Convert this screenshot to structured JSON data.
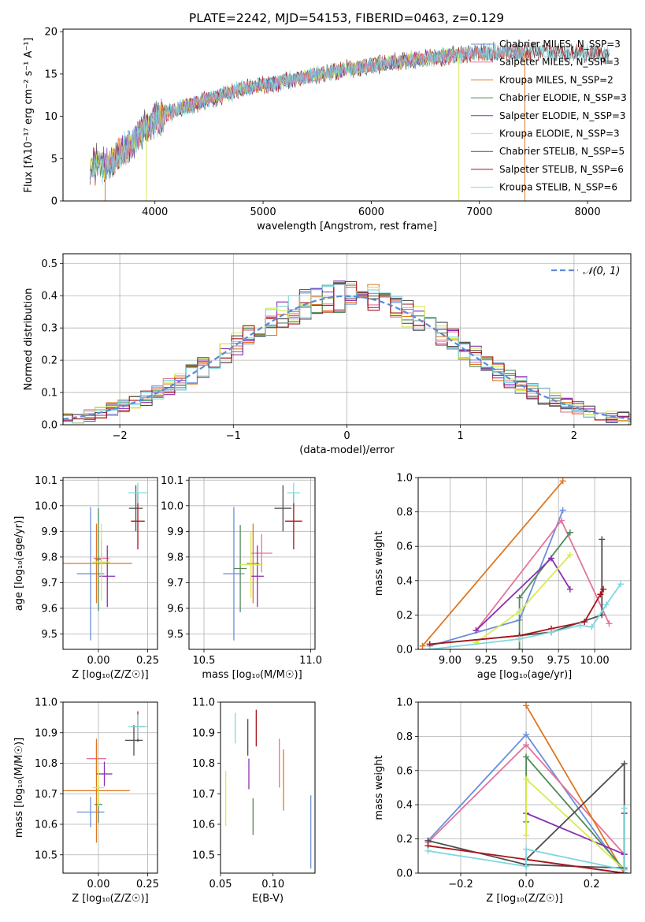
{
  "colors": {
    "Chabrier MILES": "#6b8fdd",
    "Salpeter MILES": "#e5739a",
    "Kroupa MILES": "#e0761e",
    "Chabrier ELODIE": "#4f8a5a",
    "Salpeter ELODIE": "#8a2fb0",
    "Kroupa ELODIE": "#d6ec50",
    "Chabrier STELIB": "#4d4d4d",
    "Salpeter STELIB": "#a8151b",
    "Kroupa STELIB": "#7fd7df",
    "normal_curve": "#5a8bd6",
    "grid": "#b0b0b0"
  },
  "chart_data": [
    {
      "id": "spectrum",
      "type": "line",
      "title": "PLATE=2242, MJD=54153, FIBERID=0463, z=0.129",
      "xlabel": "wavelength [Angstrom, rest frame]",
      "ylabel": "Flux [fλ10⁻¹⁷ erg cm⁻² s⁻¹ A⁻¹]",
      "xlim": [
        3150,
        8400
      ],
      "ylim": [
        0,
        20.3
      ],
      "xticks": [
        4000,
        5000,
        6000,
        7000,
        8000
      ],
      "yticks": [
        0,
        5,
        10,
        15,
        20
      ],
      "grid": false,
      "legend_placement": "upper-right",
      "legend": [
        "Chabrier MILES, N_SSP=3",
        "Salpeter MILES, N_SSP=3",
        "Kroupa MILES, N_SSP=2",
        "Chabrier ELODIE, N_SSP=3",
        "Salpeter ELODIE, N_SSP=3",
        "Kroupa ELODIE, N_SSP=3",
        "Chabrier STELIB, N_SSP=5",
        "Salpeter STELIB, N_SSP=6",
        "Kroupa STELIB, N_SSP=6"
      ],
      "continuum": {
        "x": [
          3400,
          3500,
          3600,
          3700,
          3800,
          3900,
          4000,
          4200,
          4500,
          4800,
          5000,
          5300,
          5600,
          6000,
          6400,
          6800,
          7200,
          7600,
          8000,
          8200
        ],
        "y": [
          3.8,
          4.5,
          4.4,
          6.0,
          7.2,
          8.5,
          9.6,
          10.8,
          12.0,
          13.2,
          13.7,
          14.4,
          15.2,
          16.0,
          16.7,
          17.3,
          17.6,
          17.6,
          17.4,
          17.2
        ]
      }
    },
    {
      "id": "residuals",
      "type": "histogram",
      "xlabel": "(data-model)/error",
      "ylabel": "Normed distribution",
      "xlim": [
        -2.5,
        2.5
      ],
      "ylim": [
        0,
        0.53
      ],
      "xticks": [
        -2,
        -1,
        0,
        1,
        2
      ],
      "yticks": [
        0.0,
        0.1,
        0.2,
        0.3,
        0.4,
        0.5
      ],
      "grid": true,
      "legend_placement": "upper-right",
      "legend": [
        "𝒩(0, 1)"
      ],
      "bin_width": 0.1
    },
    {
      "id": "age_vs_Z",
      "type": "errorbar",
      "xlabel": "Z [log₁₀(Z/Z☉)]",
      "ylabel": "age  [log₁₀(age/yr)]",
      "xlim": [
        -0.18,
        0.3
      ],
      "ylim": [
        9.44,
        10.11
      ],
      "xticks": [
        0.0,
        0.25
      ],
      "yticks": [
        9.5,
        9.6,
        9.7,
        9.8,
        9.9,
        10.0,
        10.1
      ],
      "grid": true,
      "points": [
        {
          "model": "Chabrier MILES",
          "x": -0.04,
          "xerr": 0.07,
          "y": 9.735,
          "yerr": 0.26
        },
        {
          "model": "Salpeter MILES",
          "x": 0.015,
          "xerr": 0.04,
          "y": 9.795,
          "yerr": 0.075
        },
        {
          "model": "Kroupa MILES",
          "x": -0.01,
          "xerr": 0.18,
          "y": 9.775,
          "yerr": 0.155
        },
        {
          "model": "Chabrier ELODIE",
          "x": 0.0,
          "xerr": 0.015,
          "y": 9.79,
          "yerr": 0.2
        },
        {
          "model": "Salpeter ELODIE",
          "x": 0.045,
          "xerr": 0.04,
          "y": 9.725,
          "yerr": 0.12
        },
        {
          "model": "Kroupa ELODIE",
          "x": 0.015,
          "xerr": 0.045,
          "y": 9.78,
          "yerr": 0.15
        },
        {
          "model": "Chabrier STELIB",
          "x": 0.19,
          "xerr": 0.035,
          "y": 9.99,
          "yerr": 0.09
        },
        {
          "model": "Salpeter STELIB",
          "x": 0.2,
          "xerr": 0.035,
          "y": 9.94,
          "yerr": 0.11
        },
        {
          "model": "Kroupa STELIB",
          "x": 0.2,
          "xerr": 0.05,
          "y": 10.05,
          "yerr": 0.04
        }
      ]
    },
    {
      "id": "age_vs_mass",
      "type": "errorbar",
      "xlabel": "mass [log₁₀(M/M☉)]",
      "ylabel": "",
      "xlim": [
        10.43,
        11.02
      ],
      "ylim": [
        9.44,
        10.11
      ],
      "xticks": [
        10.5,
        11.0
      ],
      "yticks": [
        9.5,
        9.6,
        9.7,
        9.8,
        9.9,
        10.0,
        10.1
      ],
      "grid": true,
      "points": [
        {
          "model": "Chabrier MILES",
          "x": 10.64,
          "xerr": 0.05,
          "y": 9.735,
          "yerr": 0.26
        },
        {
          "model": "Salpeter MILES",
          "x": 10.77,
          "xerr": 0.05,
          "y": 9.815,
          "yerr": 0.075
        },
        {
          "model": "Kroupa MILES",
          "x": 10.73,
          "xerr": 0.03,
          "y": 9.775,
          "yerr": 0.155
        },
        {
          "model": "Chabrier ELODIE",
          "x": 10.67,
          "xerr": 0.03,
          "y": 9.755,
          "yerr": 0.17
        },
        {
          "model": "Salpeter ELODIE",
          "x": 10.75,
          "xerr": 0.03,
          "y": 9.725,
          "yerr": 0.12
        },
        {
          "model": "Kroupa ELODIE",
          "x": 10.72,
          "xerr": 0.05,
          "y": 9.77,
          "yerr": 0.13
        },
        {
          "model": "Chabrier STELIB",
          "x": 10.87,
          "xerr": 0.04,
          "y": 9.99,
          "yerr": 0.09
        },
        {
          "model": "Salpeter STELIB",
          "x": 10.92,
          "xerr": 0.04,
          "y": 9.94,
          "yerr": 0.11
        },
        {
          "model": "Kroupa STELIB",
          "x": 10.92,
          "xerr": 0.03,
          "y": 10.05,
          "yerr": 0.04
        }
      ]
    },
    {
      "id": "weight_vs_age",
      "type": "line",
      "xlabel": "age  [log₁₀(age/yr)]",
      "ylabel": "mass weight",
      "xlim": [
        8.78,
        10.25
      ],
      "ylim": [
        0,
        1.0
      ],
      "xticks": [
        9.0,
        9.25,
        9.5,
        9.75,
        10.0
      ],
      "yticks": [
        0.0,
        0.2,
        0.4,
        0.6,
        0.8,
        1.0
      ],
      "grid": true,
      "series": [
        {
          "model": "Chabrier MILES",
          "x": [
            8.86,
            9.48,
            9.78
          ],
          "y": [
            0.02,
            0.17,
            0.81
          ]
        },
        {
          "model": "Salpeter MILES",
          "x": [
            9.18,
            9.77,
            10.1
          ],
          "y": [
            0.11,
            0.75,
            0.15
          ]
        },
        {
          "model": "Kroupa MILES",
          "x": [
            8.81,
            9.78
          ],
          "y": [
            0.02,
            0.98
          ]
        },
        {
          "model": "Chabrier ELODIE",
          "x": [
            9.48,
            9.48,
            9.83
          ],
          "y": [
            0.0,
            0.3,
            0.68
          ]
        },
        {
          "model": "Salpeter ELODIE",
          "x": [
            9.18,
            9.7,
            9.83
          ],
          "y": [
            0.11,
            0.53,
            0.35
          ]
        },
        {
          "model": "Kroupa ELODIE",
          "x": [
            9.18,
            9.48,
            9.83
          ],
          "y": [
            0.04,
            0.22,
            0.55
          ]
        },
        {
          "model": "Chabrier STELIB",
          "x": [
            8.86,
            9.48,
            9.7,
            10.05,
            10.05
          ],
          "y": [
            0.03,
            0.08,
            0.1,
            0.2,
            0.64
          ]
        },
        {
          "model": "Salpeter STELIB",
          "x": [
            8.86,
            9.48,
            9.7,
            9.93,
            10.04,
            10.06
          ],
          "y": [
            0.03,
            0.08,
            0.12,
            0.16,
            0.32,
            0.35
          ]
        },
        {
          "model": "Kroupa STELIB",
          "x": [
            8.86,
            9.48,
            9.7,
            9.9,
            9.98,
            10.08,
            10.18
          ],
          "y": [
            0.0,
            0.06,
            0.1,
            0.14,
            0.13,
            0.26,
            0.38
          ]
        }
      ]
    },
    {
      "id": "mass_vs_Z",
      "type": "errorbar",
      "xlabel": "Z [log₁₀(Z/Z☉)]",
      "ylabel": "mass [log₁₀(M/M☉)]",
      "xlim": [
        -0.18,
        0.3
      ],
      "ylim": [
        10.44,
        11.0
      ],
      "xticks": [
        0.0,
        0.25
      ],
      "yticks": [
        10.5,
        10.6,
        10.7,
        10.8,
        10.9,
        11.0
      ],
      "grid": true,
      "points": [
        {
          "model": "Chabrier MILES",
          "x": -0.04,
          "xerr": 0.07,
          "y": 10.64,
          "yerr": 0.05
        },
        {
          "model": "Salpeter MILES",
          "x": -0.01,
          "xerr": 0.05,
          "y": 10.815,
          "yerr": 0.05
        },
        {
          "model": "Kroupa MILES",
          "x": -0.01,
          "xerr": 0.17,
          "y": 10.71,
          "yerr": 0.17
        },
        {
          "model": "Chabrier ELODIE",
          "x": 0.0,
          "xerr": 0.02,
          "y": 10.665,
          "yerr": 0.06
        },
        {
          "model": "Salpeter ELODIE",
          "x": 0.03,
          "xerr": 0.04,
          "y": 10.765,
          "yerr": 0.04
        },
        {
          "model": "Kroupa ELODIE",
          "x": 0.0,
          "xerr": 0.03,
          "y": 10.72,
          "yerr": 0.06
        },
        {
          "model": "Chabrier STELIB",
          "x": 0.18,
          "xerr": 0.045,
          "y": 10.875,
          "yerr": 0.05
        },
        {
          "model": "Salpeter STELIB",
          "x": 0.2,
          "xerr": 0.035,
          "y": 10.92,
          "yerr": 0.05
        },
        {
          "model": "Kroupa STELIB",
          "x": 0.2,
          "xerr": 0.05,
          "y": 10.92,
          "yerr": 0.04
        }
      ]
    },
    {
      "id": "mass_vs_EBV",
      "type": "errorbar",
      "xlabel": "E(B-V)",
      "ylabel": "",
      "xlim": [
        0.05,
        0.14
      ],
      "ylim": [
        10.44,
        11.0
      ],
      "xticks": [
        0.05,
        0.1
      ],
      "yticks": [
        10.5,
        10.6,
        10.7,
        10.8,
        10.9,
        11.0
      ],
      "grid": false,
      "points": [
        {
          "model": "Chabrier MILES",
          "x": 0.136,
          "yerr": 0.12,
          "y": 10.575
        },
        {
          "model": "Salpeter MILES",
          "x": 0.106,
          "yerr": 0.08,
          "y": 10.8
        },
        {
          "model": "Kroupa MILES",
          "x": 0.11,
          "yerr": 0.1,
          "y": 10.745
        },
        {
          "model": "Chabrier ELODIE",
          "x": 0.081,
          "yerr": 0.06,
          "y": 10.625
        },
        {
          "model": "Salpeter ELODIE",
          "x": 0.077,
          "yerr": 0.05,
          "y": 10.765
        },
        {
          "model": "Kroupa ELODIE",
          "x": 0.055,
          "yerr": 0.09,
          "y": 10.685
        },
        {
          "model": "Chabrier STELIB",
          "x": 0.076,
          "yerr": 0.06,
          "y": 10.885
        },
        {
          "model": "Salpeter STELIB",
          "x": 0.084,
          "yerr": 0.06,
          "y": 10.915
        },
        {
          "model": "Kroupa STELIB",
          "x": 0.064,
          "yerr": 0.05,
          "y": 10.915
        }
      ]
    },
    {
      "id": "weight_vs_Z",
      "type": "line",
      "xlabel": "Z [log₁₀(Z/Z☉)]",
      "ylabel": "mass weight",
      "xlim": [
        -0.33,
        0.32
      ],
      "ylim": [
        0,
        1.0
      ],
      "xticks": [
        -0.2,
        0.0,
        0.2
      ],
      "yticks": [
        0.0,
        0.2,
        0.4,
        0.6,
        0.8,
        1.0
      ],
      "grid": true,
      "series": [
        {
          "model": "Chabrier MILES",
          "x": [
            -0.3,
            0.0,
            0.3
          ],
          "y": [
            0.19,
            0.81,
            0.0
          ]
        },
        {
          "model": "Salpeter MILES",
          "x": [
            -0.3,
            0.0,
            0.3
          ],
          "y": [
            0.18,
            0.75,
            0.11
          ]
        },
        {
          "model": "Kroupa MILES",
          "x": [
            0.0,
            0.3
          ],
          "y": [
            0.98,
            0.0
          ]
        },
        {
          "model": "Chabrier ELODIE",
          "x": [
            0.0,
            0.0,
            0.3
          ],
          "y": [
            0.3,
            0.68,
            0.02
          ]
        },
        {
          "model": "Salpeter ELODIE",
          "x": [
            0.0,
            0.3
          ],
          "y": [
            0.35,
            0.11
          ]
        },
        {
          "model": "Kroupa ELODIE",
          "x": [
            0.0,
            0.0,
            0.3
          ],
          "y": [
            0.22,
            0.55,
            0.02
          ]
        },
        {
          "model": "Chabrier STELIB",
          "x": [
            -0.3,
            0.0,
            0.3,
            0.3,
            0.0,
            0.3
          ],
          "y": [
            0.19,
            0.05,
            0.03,
            0.64,
            0.08,
            0.0
          ]
        },
        {
          "model": "Salpeter STELIB",
          "x": [
            -0.3,
            0.0,
            0.3,
            0.3
          ],
          "y": [
            0.16,
            0.08,
            0.0,
            0.35
          ]
        },
        {
          "model": "Kroupa STELIB",
          "x": [
            -0.3,
            0.0,
            0.0,
            0.3,
            0.3
          ],
          "y": [
            0.13,
            0.04,
            0.14,
            0.02,
            0.38
          ]
        }
      ]
    }
  ]
}
